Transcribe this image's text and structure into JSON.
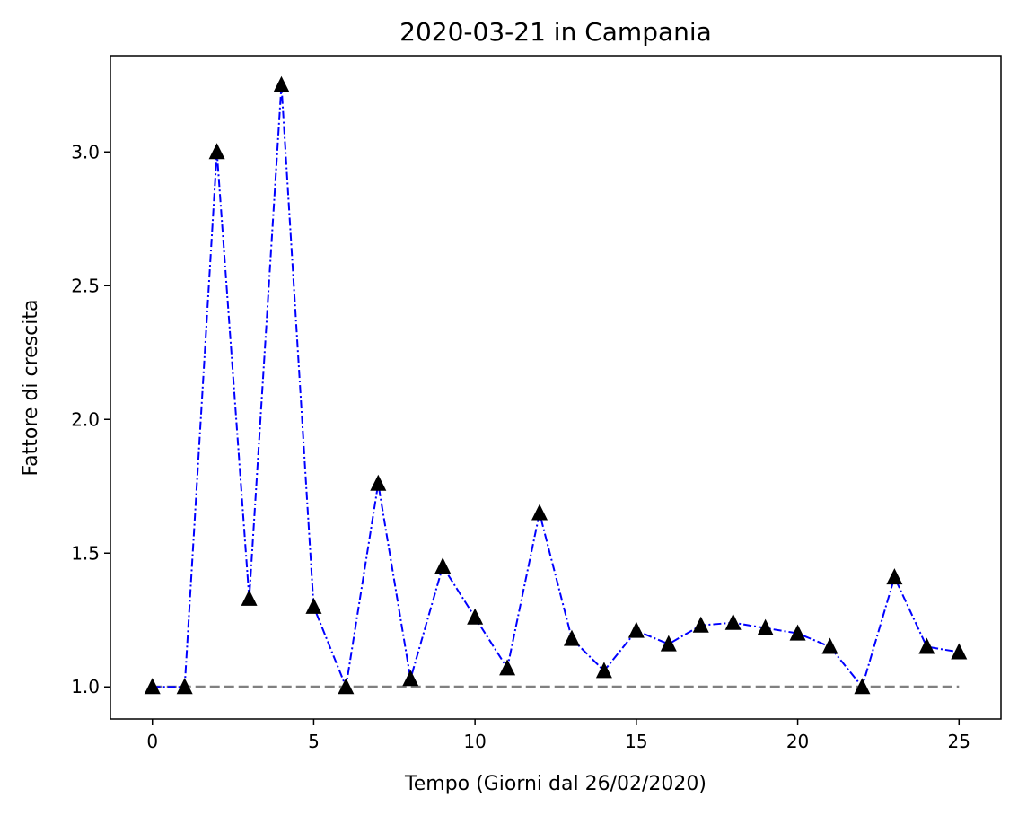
{
  "chart_data": {
    "type": "line",
    "title": "2020-03-21 in Campania",
    "xlabel": "Tempo (Giorni dal 26/02/2020)",
    "ylabel": "Fattore di crescita",
    "xlim": [
      -1.3,
      26.3
    ],
    "ylim": [
      0.88,
      3.36
    ],
    "x_ticks": [
      0,
      5,
      10,
      15,
      20,
      25
    ],
    "x_tick_labels": [
      "0",
      "5",
      "10",
      "15",
      "20",
      "25"
    ],
    "y_ticks": [
      1.0,
      1.5,
      2.0,
      2.5,
      3.0
    ],
    "y_tick_labels": [
      "1.0",
      "1.5",
      "2.0",
      "2.5",
      "3.0"
    ],
    "grid": false,
    "series": [
      {
        "style": "dash-dot line with triangle markers",
        "line_color": "#0000ff",
        "marker_color": "#000000",
        "x": [
          0,
          1,
          2,
          3,
          4,
          5,
          6,
          7,
          8,
          9,
          10,
          11,
          12,
          13,
          14,
          15,
          16,
          17,
          18,
          19,
          20,
          21,
          22,
          23,
          24,
          25
        ],
        "y": [
          1.0,
          1.0,
          3.0,
          1.33,
          3.25,
          1.3,
          1.0,
          1.76,
          1.03,
          1.45,
          1.26,
          1.07,
          1.65,
          1.18,
          1.06,
          1.21,
          1.16,
          1.23,
          1.24,
          1.22,
          1.2,
          1.15,
          1.0,
          1.41,
          1.15,
          1.13
        ]
      },
      {
        "style": "dashed reference line",
        "line_color": "#808080",
        "x": [
          0,
          25
        ],
        "y": [
          1.0,
          1.0
        ]
      }
    ]
  }
}
